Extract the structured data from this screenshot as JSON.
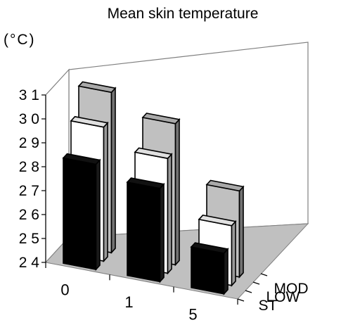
{
  "chart_data": {
    "type": "bar",
    "title": "Mean skin temperature",
    "ylabel": "(°C)",
    "ylim": [
      24,
      31
    ],
    "yticks": [
      "2 4",
      "2 5",
      "2 6",
      "2 7",
      "2 8",
      "2 9",
      "3 0",
      "3 1"
    ],
    "categories": [
      "0",
      "1",
      "5"
    ],
    "depth_categories": [
      "ST",
      "LOW",
      "MOD"
    ],
    "series": [
      {
        "name": "ST",
        "color": "#000000",
        "values": [
          28.4,
          27.9,
          25.7
        ]
      },
      {
        "name": "LOW",
        "color": "#ffffff",
        "values": [
          29.6,
          28.8,
          26.5
        ]
      },
      {
        "name": "MOD",
        "color": "#c0c0c0",
        "values": [
          30.7,
          29.9,
          27.6
        ]
      }
    ]
  }
}
